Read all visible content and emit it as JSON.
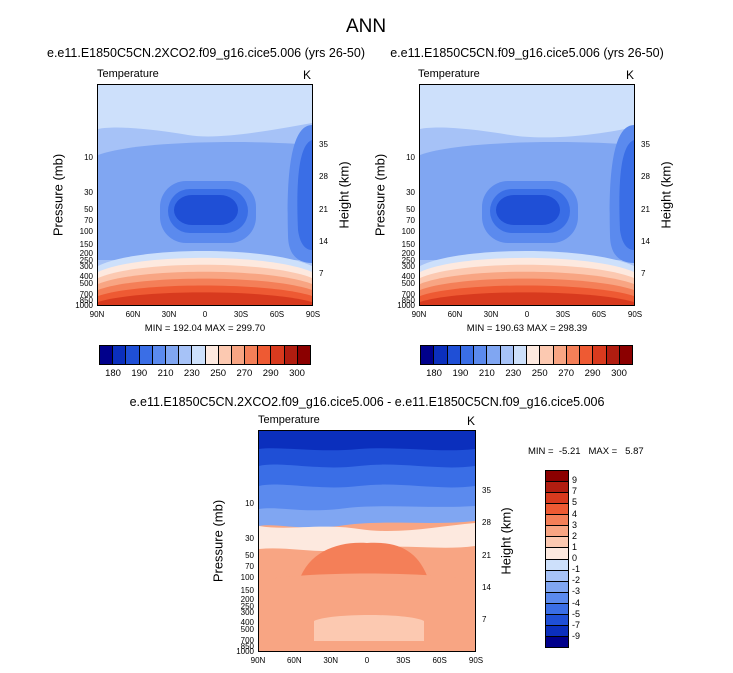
{
  "main_title": "ANN",
  "panels": [
    {
      "key": "p1",
      "title": "e.e11.E1850C5CN.2XCO2.f09_g16.cice5.006 (yrs 26-50)",
      "var_label": "Temperature",
      "units": "K",
      "stats": "MIN = 192.04   MAX = 299.70"
    },
    {
      "key": "p2",
      "title": "e.e11.E1850C5CN.f09_g16.cice5.006 (yrs 26-50)",
      "var_label": "Temperature",
      "units": "K",
      "stats": "MIN = 190.63   MAX = 298.39"
    },
    {
      "key": "p3",
      "title": "e.e11.E1850C5CN.2XCO2.f09_g16.cice5.006 - e.e11.E1850C5CN.f09_g16.cice5.006",
      "var_label": "Temperature",
      "units": "K",
      "stats": "MIN =  -5.21   MAX =   5.87"
    }
  ],
  "axes": {
    "ylabel_left": "Pressure (mb)",
    "ylabel_right": "Height (km)",
    "lat_ticks": [
      "90N",
      "60N",
      "30N",
      "0",
      "30S",
      "60S",
      "90S"
    ],
    "pressure_ticks": [
      "10",
      "30",
      "50",
      "70",
      "100",
      "150",
      "200",
      "250",
      "300",
      "400",
      "500",
      "700",
      "850",
      "1000"
    ],
    "height_ticks": [
      "35",
      "28",
      "21",
      "14",
      "7"
    ]
  },
  "colors": {
    "abs_scale": [
      "#00008b",
      "#0b2fbd",
      "#1f4fd6",
      "#3a6ee6",
      "#5b8aee",
      "#80a6f2",
      "#a6c2f7",
      "#cde0fb",
      "#fde9df",
      "#fcc9b1",
      "#f8a583",
      "#f47f58",
      "#ee5a33",
      "#d83a1e",
      "#b11d10",
      "#8b0000"
    ],
    "diff_scale": [
      "#00008b",
      "#0b2fbd",
      "#1f4fd6",
      "#3a6ee6",
      "#5b8aee",
      "#80a6f2",
      "#a6c2f7",
      "#cde0fb",
      "#fde9df",
      "#fcc9b1",
      "#f8a583",
      "#f47f58",
      "#ee5a33",
      "#d83a1e",
      "#b11d10",
      "#8b0000"
    ]
  },
  "chart_data": [
    {
      "type": "heatmap",
      "title": "e.e11.E1850C5CN.2XCO2.f09_g16.cice5.006 (yrs 26-50)",
      "variable": "Temperature",
      "units": "K",
      "xlabel": "",
      "ylabel": "Pressure (mb)",
      "ylabel_right": "Height (km)",
      "x_ticks": [
        "90N",
        "60N",
        "30N",
        "0",
        "30S",
        "60S",
        "90S"
      ],
      "y_range_mb": [
        1000,
        1
      ],
      "colorbar_levels": [
        180,
        190,
        200,
        210,
        220,
        230,
        240,
        250,
        260,
        270,
        280,
        290,
        300
      ],
      "colorbar_tick_labels": [
        "180",
        "190",
        "210",
        "230",
        "250",
        "270",
        "290",
        "300"
      ],
      "min": 192.04,
      "max": 299.7
    },
    {
      "type": "heatmap",
      "title": "e.e11.E1850C5CN.f09_g16.cice5.006 (yrs 26-50)",
      "variable": "Temperature",
      "units": "K",
      "xlabel": "",
      "ylabel": "Pressure (mb)",
      "ylabel_right": "Height (km)",
      "x_ticks": [
        "90N",
        "60N",
        "30N",
        "0",
        "30S",
        "60S",
        "90S"
      ],
      "y_range_mb": [
        1000,
        1
      ],
      "colorbar_levels": [
        180,
        190,
        200,
        210,
        220,
        230,
        240,
        250,
        260,
        270,
        280,
        290,
        300
      ],
      "colorbar_tick_labels": [
        "180",
        "190",
        "210",
        "230",
        "250",
        "270",
        "290",
        "300"
      ],
      "min": 190.63,
      "max": 298.39
    },
    {
      "type": "heatmap",
      "title": "e.e11.E1850C5CN.2XCO2.f09_g16.cice5.006 - e.e11.E1850C5CN.f09_g16.cice5.006",
      "variable": "Temperature",
      "units": "K",
      "xlabel": "",
      "ylabel": "Pressure (mb)",
      "ylabel_right": "Height (km)",
      "x_ticks": [
        "90N",
        "60N",
        "30N",
        "0",
        "30S",
        "60S",
        "90S"
      ],
      "y_range_mb": [
        1000,
        1
      ],
      "colorbar_levels": [
        9,
        7,
        5,
        4,
        3,
        2,
        1,
        0,
        -1,
        -2,
        -3,
        -4,
        -5,
        -7,
        -9
      ],
      "colorbar_tick_labels": [
        "9",
        "7",
        "5",
        "4",
        "3",
        "2",
        "1",
        "0",
        "-1",
        "-2",
        "-3",
        "-4",
        "-5",
        "-7",
        "-9"
      ],
      "min": -5.21,
      "max": 5.87
    }
  ]
}
